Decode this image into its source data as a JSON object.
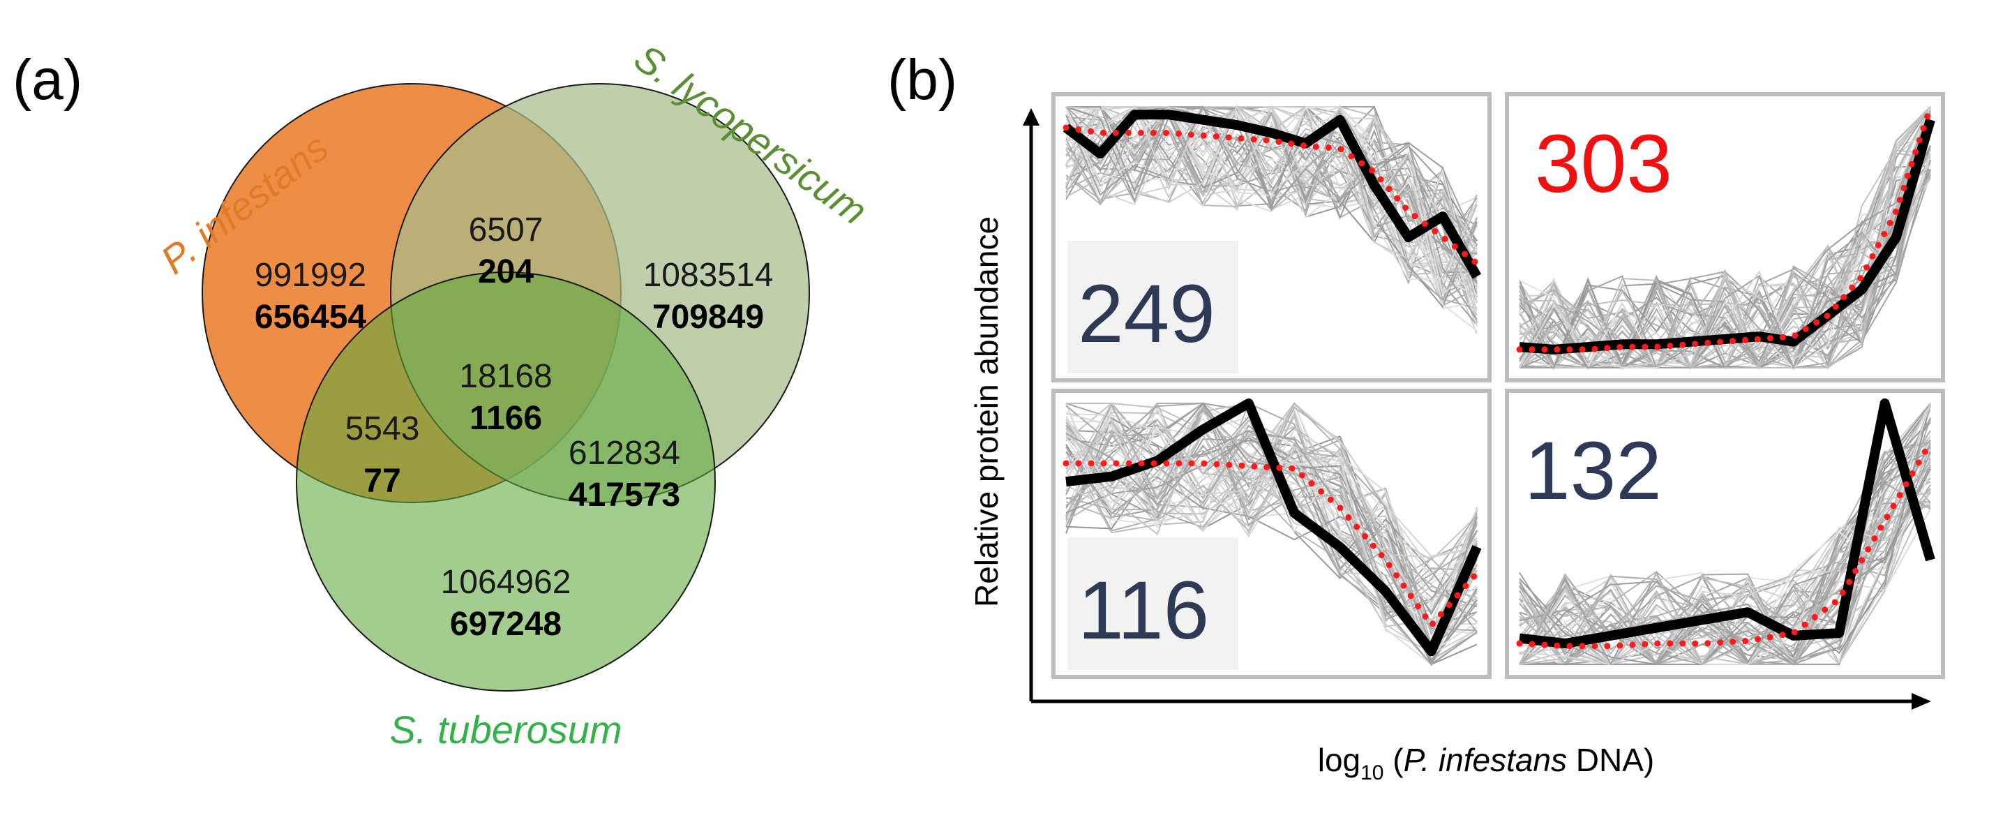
{
  "panel_a": {
    "label": "(a)",
    "sets": [
      {
        "name": "P. infestans",
        "color": "#E8802E"
      },
      {
        "name": "S. lycopersicum",
        "color": "#4F8A2E"
      },
      {
        "name": "S. tuberosum",
        "color": "#3DB54A"
      }
    ],
    "regions": {
      "p_only": {
        "total": "991992",
        "bold": "656454"
      },
      "l_only": {
        "total": "1083514",
        "bold": "709849"
      },
      "t_only": {
        "total": "1064962",
        "bold": "697248"
      },
      "p_l": {
        "total": "6507",
        "bold": "204"
      },
      "p_t": {
        "total": "5543",
        "bold": "77"
      },
      "l_t": {
        "total": "612834",
        "bold": "417573"
      },
      "p_l_t": {
        "total": "18168",
        "bold": "1166"
      }
    }
  },
  "panel_b": {
    "label": "(b)",
    "y_axis_label": "Relative protein abundance",
    "x_axis_label": {
      "prefix": "log",
      "subscript": "10",
      "open": " (",
      "italic": "P. infestans",
      "suffix": " DNA)"
    },
    "clusters": [
      {
        "count": "249",
        "count_color": "#2E3A55",
        "mean_profile": [
          0.92,
          0.82,
          0.97,
          0.97,
          0.95,
          0.93,
          0.9,
          0.86,
          0.95,
          0.7,
          0.5,
          0.58,
          0.35
        ],
        "model_profile": [
          0.92,
          0.9,
          0.9,
          0.9,
          0.89,
          0.88,
          0.87,
          0.85,
          0.84,
          0.75,
          0.6,
          0.5,
          0.4
        ]
      },
      {
        "count": "303",
        "count_color": "#F01010",
        "mean_profile": [
          0.08,
          0.07,
          0.08,
          0.09,
          0.09,
          0.1,
          0.11,
          0.12,
          0.1,
          0.2,
          0.3,
          0.5,
          0.95
        ],
        "model_profile": [
          0.07,
          0.07,
          0.07,
          0.08,
          0.08,
          0.09,
          0.1,
          0.11,
          0.12,
          0.2,
          0.35,
          0.6,
          1.0
        ]
      },
      {
        "count": "116",
        "count_color": "#2E3A55",
        "mean_profile": [
          0.7,
          0.72,
          0.78,
          0.9,
          1.0,
          0.58,
          0.45,
          0.28,
          0.05,
          0.45
        ],
        "model_profile": [
          0.77,
          0.77,
          0.77,
          0.77,
          0.76,
          0.75,
          0.6,
          0.4,
          0.15,
          0.35
        ]
      },
      {
        "count": "132",
        "count_color": "#2E3A55",
        "mean_profile": [
          0.1,
          0.08,
          0.11,
          0.14,
          0.17,
          0.2,
          0.11,
          0.12,
          1.0,
          0.4
        ],
        "model_profile": [
          0.08,
          0.07,
          0.07,
          0.08,
          0.08,
          0.09,
          0.12,
          0.25,
          0.55,
          0.85
        ]
      }
    ]
  }
}
